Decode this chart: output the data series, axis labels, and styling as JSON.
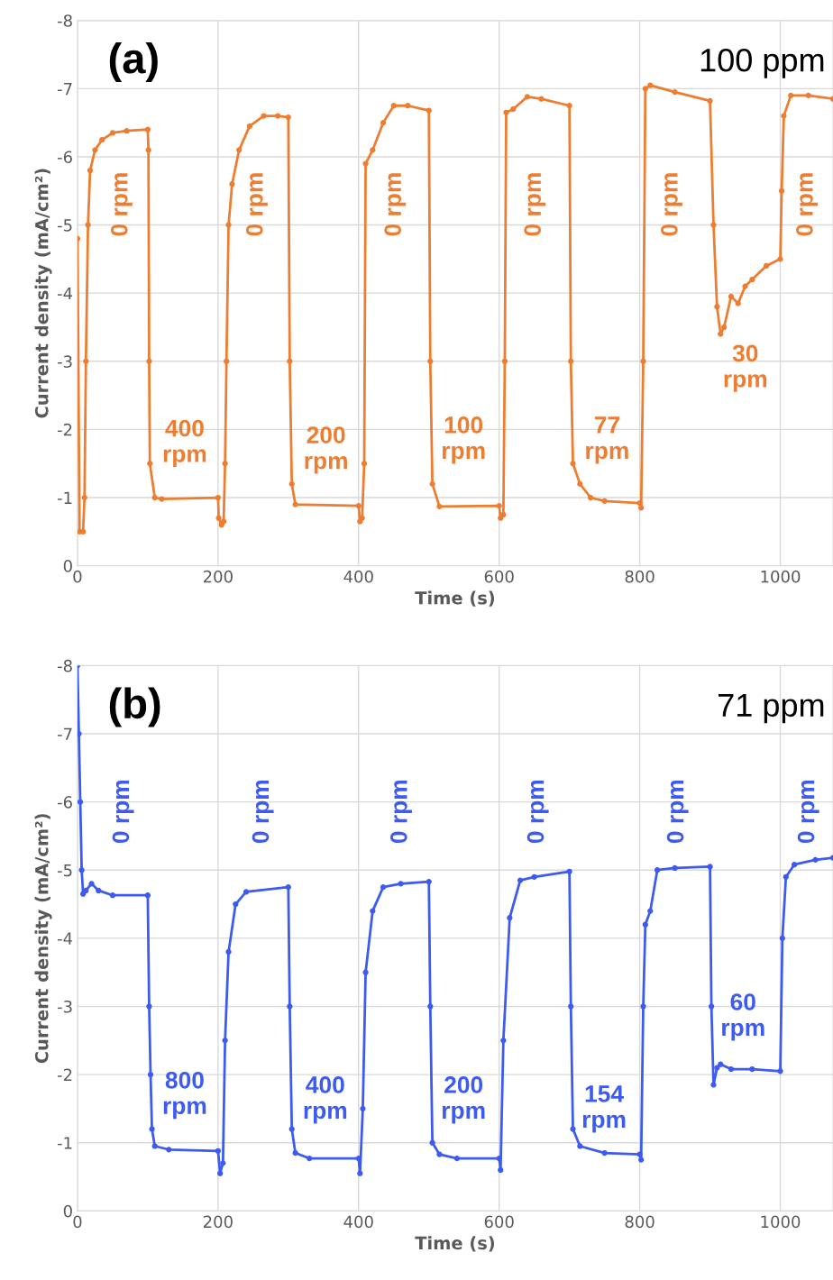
{
  "chart_data": [
    {
      "type": "line",
      "title": "(a)",
      "subtitle": "100 ppm",
      "xlabel": "Time (s)",
      "ylabel": "Current density (mA/cm²)",
      "xlim": [
        0,
        1075
      ],
      "xticks": [
        0,
        200,
        400,
        600,
        800,
        1000
      ],
      "ylim": [
        0,
        -8
      ],
      "yticks": [
        0,
        -1,
        -2,
        -3,
        -4,
        -5,
        -6,
        -7,
        -8
      ],
      "grid": true,
      "marker": "circle",
      "line_style": "solid",
      "series": [
        {
          "color": "#ed7d31",
          "x": [
            0,
            3,
            8,
            10,
            12,
            15,
            18,
            25,
            35,
            50,
            70,
            100,
            101,
            102,
            103,
            110,
            120,
            200,
            201,
            205,
            208,
            210,
            212,
            215,
            220,
            230,
            245,
            265,
            285,
            300,
            302,
            305,
            310,
            400,
            402,
            405,
            408,
            410,
            420,
            435,
            450,
            470,
            500,
            502,
            505,
            515,
            600,
            602,
            606,
            608,
            610,
            620,
            640,
            660,
            700,
            702,
            705,
            715,
            730,
            750,
            800,
            802,
            805,
            808,
            815,
            850,
            900,
            905,
            910,
            915,
            920,
            930,
            940,
            950,
            960,
            980,
            1000,
            1002,
            1005,
            1015,
            1040,
            1075
          ],
          "values": [
            -4.8,
            -0.5,
            -0.5,
            -1,
            -3,
            -5,
            -5.8,
            -6.1,
            -6.25,
            -6.35,
            -6.38,
            -6.4,
            -6.1,
            -3,
            -1.5,
            -1.0,
            -0.98,
            -1.0,
            -0.7,
            -0.6,
            -0.65,
            -1.5,
            -3,
            -5,
            -5.6,
            -6.1,
            -6.45,
            -6.6,
            -6.6,
            -6.58,
            -3,
            -1.2,
            -0.9,
            -0.88,
            -0.65,
            -0.7,
            -1.5,
            -5.9,
            -6.1,
            -6.5,
            -6.75,
            -6.75,
            -6.68,
            -3,
            -1.2,
            -0.87,
            -0.88,
            -0.7,
            -0.75,
            -3,
            -6.65,
            -6.7,
            -6.88,
            -6.85,
            -6.75,
            -3,
            -1.5,
            -1.2,
            -1.0,
            -0.95,
            -0.92,
            -0.85,
            -3,
            -7.0,
            -7.05,
            -6.95,
            -6.82,
            -5,
            -3.8,
            -3.4,
            -3.5,
            -3.95,
            -3.85,
            -4.1,
            -4.2,
            -4.4,
            -4.5,
            -5.5,
            -6.6,
            -6.9,
            -6.9,
            -6.85
          ]
        }
      ],
      "annotations": [
        "0 rpm",
        "0 rpm",
        "0 rpm",
        "0 rpm",
        "0 rpm",
        "0 rpm",
        "400\nrpm",
        "200\nrpm",
        "100\nrpm",
        "77\nrpm",
        "30\nrpm"
      ]
    },
    {
      "type": "line",
      "title": "(b)",
      "subtitle": "71 ppm",
      "xlabel": "Time (s)",
      "ylabel": "Current density (mA/cm²)",
      "xlim": [
        0,
        1075
      ],
      "xticks": [
        0,
        200,
        400,
        600,
        800,
        1000
      ],
      "ylim": [
        0,
        -8
      ],
      "yticks": [
        0,
        -1,
        -2,
        -3,
        -4,
        -5,
        -6,
        -7,
        -8
      ],
      "grid": true,
      "marker": "circle",
      "line_style": "solid",
      "series": [
        {
          "color": "#3d5af1",
          "x": [
            0,
            2,
            4,
            6,
            8,
            12,
            20,
            30,
            50,
            100,
            102,
            104,
            106,
            110,
            130,
            200,
            203,
            207,
            210,
            215,
            225,
            240,
            300,
            302,
            305,
            310,
            330,
            400,
            402,
            406,
            410,
            420,
            435,
            460,
            500,
            502,
            505,
            515,
            540,
            600,
            602,
            606,
            615,
            630,
            650,
            700,
            702,
            705,
            715,
            750,
            800,
            802,
            805,
            808,
            815,
            825,
            850,
            900,
            902,
            905,
            910,
            915,
            930,
            960,
            1000,
            1003,
            1008,
            1020,
            1050,
            1075
          ],
          "values": [
            -8,
            -7,
            -6,
            -5,
            -4.65,
            -4.7,
            -4.8,
            -4.7,
            -4.63,
            -4.63,
            -3,
            -2,
            -1.2,
            -0.95,
            -0.9,
            -0.88,
            -0.55,
            -0.7,
            -2.5,
            -3.8,
            -4.5,
            -4.68,
            -4.75,
            -3,
            -1.2,
            -0.85,
            -0.77,
            -0.77,
            -0.55,
            -1.5,
            -3.5,
            -4.4,
            -4.75,
            -4.8,
            -4.83,
            -3,
            -1,
            -0.83,
            -0.77,
            -0.77,
            -0.6,
            -2.5,
            -4.3,
            -4.85,
            -4.9,
            -4.98,
            -3,
            -1.2,
            -0.95,
            -0.85,
            -0.83,
            -0.75,
            -3,
            -4.2,
            -4.4,
            -5.0,
            -5.03,
            -5.05,
            -3,
            -1.85,
            -2.1,
            -2.15,
            -2.08,
            -2.08,
            -2.05,
            -4.0,
            -4.9,
            -5.08,
            -5.15,
            -5.18
          ]
        }
      ],
      "annotations": [
        "0 rpm",
        "0 rpm",
        "0 rpm",
        "0 rpm",
        "0 rpm",
        "0 rpm",
        "800\nrpm",
        "400\nrpm",
        "200\nrpm",
        "154\nrpm",
        "60\nrpm"
      ]
    }
  ]
}
